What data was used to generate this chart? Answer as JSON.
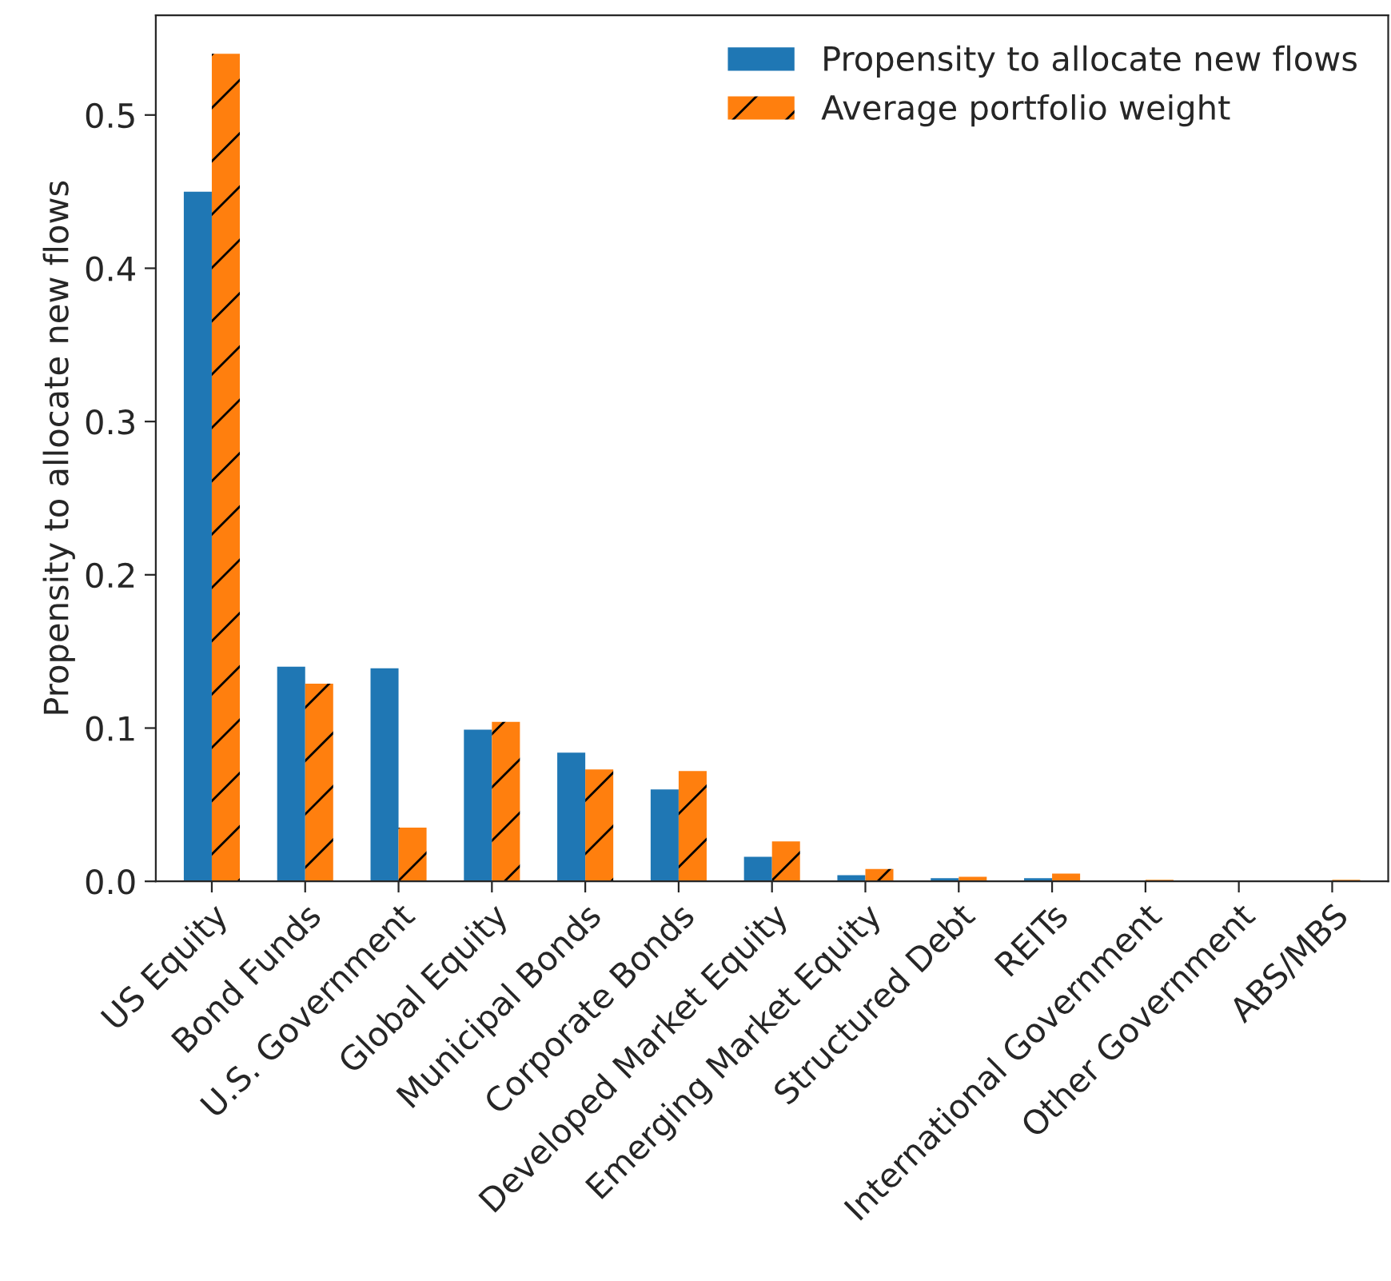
{
  "chart_data": {
    "type": "bar",
    "ylabel": "Propensity to allocate new flows",
    "categories": [
      "US Equity",
      "Bond Funds",
      "U.S. Government",
      "Global Equity",
      "Municipal Bonds",
      "Corporate Bonds",
      "Developed Market Equity",
      "Emerging Market Equity",
      "Structured Debt",
      "REITs",
      "International Government",
      "Other Government",
      "ABS/MBS"
    ],
    "series": [
      {
        "name": "Propensity to allocate new flows",
        "color": "#1f77b4",
        "values": [
          0.45,
          0.14,
          0.139,
          0.099,
          0.084,
          0.06,
          0.016,
          0.004,
          0.002,
          0.002,
          0,
          0,
          0
        ]
      },
      {
        "name": "Average portfolio weight",
        "color": "#ff7f0e",
        "values": [
          0.54,
          0.129,
          0.035,
          0.104,
          0.073,
          0.072,
          0.026,
          0.008,
          0.003,
          0.005,
          0.001,
          0,
          0.001
        ]
      }
    ],
    "ylim": [
      0,
      0.565
    ],
    "yticks": [
      {
        "value": 0,
        "label": "0.0"
      },
      0.1,
      0.2,
      0.3,
      0.4,
      0.5
    ],
    "grid": false,
    "legend": "top right"
  }
}
